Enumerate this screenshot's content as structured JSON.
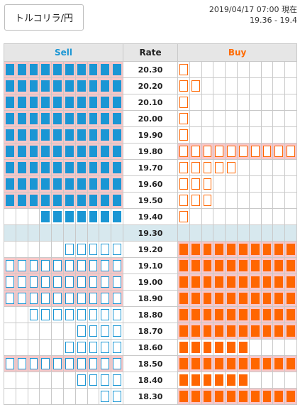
{
  "header": {
    "pair_label": "トルコリラ/円",
    "timestamp": "2019/04/17 07:00 現在",
    "range": "19.36 - 19.4"
  },
  "columns": {
    "sell": "Sell",
    "rate": "Rate",
    "buy": "Buy"
  },
  "colors": {
    "sell": "#1a96d4",
    "buy": "#ff6600",
    "row_highlight": "#f8c7c8",
    "current_rate_row": "#d7e8ee"
  },
  "rows": [
    {
      "rate": "20.30",
      "sell": {
        "filled": 10,
        "outline": 0
      },
      "buy": {
        "filled": 0,
        "outline": 1
      },
      "sell_highlight": true,
      "buy_highlight": false
    },
    {
      "rate": "20.20",
      "sell": {
        "filled": 10,
        "outline": 0
      },
      "buy": {
        "filled": 0,
        "outline": 2
      },
      "sell_highlight": true,
      "buy_highlight": false
    },
    {
      "rate": "20.10",
      "sell": {
        "filled": 10,
        "outline": 0
      },
      "buy": {
        "filled": 0,
        "outline": 1
      },
      "sell_highlight": true,
      "buy_highlight": false
    },
    {
      "rate": "20.00",
      "sell": {
        "filled": 10,
        "outline": 0
      },
      "buy": {
        "filled": 0,
        "outline": 1
      },
      "sell_highlight": true,
      "buy_highlight": false
    },
    {
      "rate": "19.90",
      "sell": {
        "filled": 10,
        "outline": 0
      },
      "buy": {
        "filled": 0,
        "outline": 1
      },
      "sell_highlight": true,
      "buy_highlight": false
    },
    {
      "rate": "19.80",
      "sell": {
        "filled": 10,
        "outline": 0
      },
      "buy": {
        "filled": 0,
        "outline": 10
      },
      "sell_highlight": true,
      "buy_highlight": true
    },
    {
      "rate": "19.70",
      "sell": {
        "filled": 10,
        "outline": 0
      },
      "buy": {
        "filled": 0,
        "outline": 5
      },
      "sell_highlight": true,
      "buy_highlight": false
    },
    {
      "rate": "19.60",
      "sell": {
        "filled": 10,
        "outline": 0
      },
      "buy": {
        "filled": 0,
        "outline": 3
      },
      "sell_highlight": true,
      "buy_highlight": false
    },
    {
      "rate": "19.50",
      "sell": {
        "filled": 10,
        "outline": 0
      },
      "buy": {
        "filled": 0,
        "outline": 3
      },
      "sell_highlight": true,
      "buy_highlight": false
    },
    {
      "rate": "19.40",
      "sell": {
        "filled": 7,
        "outline": 0
      },
      "buy": {
        "filled": 0,
        "outline": 1
      },
      "sell_highlight": false,
      "buy_highlight": false
    },
    {
      "rate": "19.30",
      "current": true,
      "sell": {
        "filled": 0,
        "outline": 0
      },
      "buy": {
        "filled": 0,
        "outline": 0
      },
      "sell_highlight": false,
      "buy_highlight": false
    },
    {
      "rate": "19.20",
      "sell": {
        "filled": 0,
        "outline": 5
      },
      "buy": {
        "filled": 10,
        "outline": 0
      },
      "sell_highlight": false,
      "buy_highlight": true
    },
    {
      "rate": "19.10",
      "sell": {
        "filled": 0,
        "outline": 10
      },
      "buy": {
        "filled": 10,
        "outline": 0
      },
      "sell_highlight": true,
      "buy_highlight": true
    },
    {
      "rate": "19.00",
      "sell": {
        "filled": 0,
        "outline": 10
      },
      "buy": {
        "filled": 10,
        "outline": 0
      },
      "sell_highlight": true,
      "buy_highlight": true
    },
    {
      "rate": "18.90",
      "sell": {
        "filled": 0,
        "outline": 10
      },
      "buy": {
        "filled": 10,
        "outline": 0
      },
      "sell_highlight": true,
      "buy_highlight": true
    },
    {
      "rate": "18.80",
      "sell": {
        "filled": 0,
        "outline": 8
      },
      "buy": {
        "filled": 10,
        "outline": 0
      },
      "sell_highlight": false,
      "buy_highlight": true
    },
    {
      "rate": "18.70",
      "sell": {
        "filled": 0,
        "outline": 4
      },
      "buy": {
        "filled": 10,
        "outline": 0
      },
      "sell_highlight": false,
      "buy_highlight": true
    },
    {
      "rate": "18.60",
      "sell": {
        "filled": 0,
        "outline": 5
      },
      "buy": {
        "filled": 6,
        "outline": 0
      },
      "sell_highlight": false,
      "buy_highlight": false
    },
    {
      "rate": "18.50",
      "sell": {
        "filled": 0,
        "outline": 10
      },
      "buy": {
        "filled": 10,
        "outline": 0
      },
      "sell_highlight": true,
      "buy_highlight": true
    },
    {
      "rate": "18.40",
      "sell": {
        "filled": 0,
        "outline": 4
      },
      "buy": {
        "filled": 6,
        "outline": 0
      },
      "sell_highlight": false,
      "buy_highlight": false
    },
    {
      "rate": "18.30",
      "sell": {
        "filled": 0,
        "outline": 2
      },
      "buy": {
        "filled": 10,
        "outline": 0
      },
      "sell_highlight": false,
      "buy_highlight": true
    }
  ]
}
